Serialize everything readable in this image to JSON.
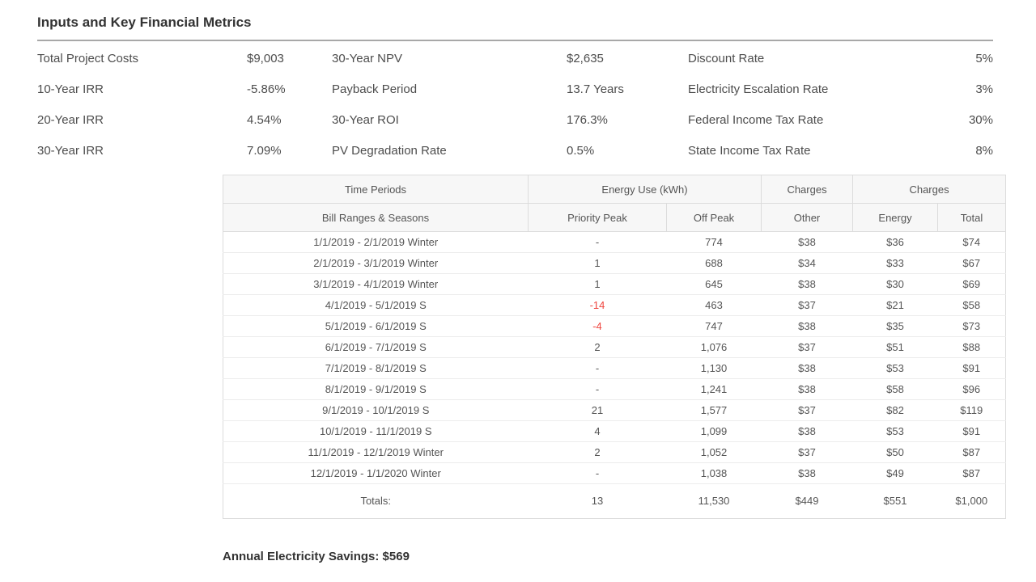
{
  "page": {
    "title": "Inputs and Key Financial Metrics",
    "savings_note": "Annual Electricity Savings: $569"
  },
  "metrics": {
    "rows": [
      [
        {
          "label": "Total Project Costs",
          "value": "$9,003"
        },
        {
          "label": "30-Year NPV",
          "value": "$2,635"
        },
        {
          "label": "Discount Rate",
          "value": "5%"
        }
      ],
      [
        {
          "label": "10-Year IRR",
          "value": "-5.86%"
        },
        {
          "label": "Payback Period",
          "value": "13.7 Years"
        },
        {
          "label": "Electricity Escalation Rate",
          "value": "3%"
        }
      ],
      [
        {
          "label": "20-Year IRR",
          "value": "4.54%"
        },
        {
          "label": "30-Year ROI",
          "value": "176.3%"
        },
        {
          "label": "Federal Income Tax Rate",
          "value": "30%"
        }
      ],
      [
        {
          "label": "30-Year IRR",
          "value": "7.09%"
        },
        {
          "label": "PV Degradation Rate",
          "value": "0.5%"
        },
        {
          "label": "State Income Tax Rate",
          "value": "8%"
        }
      ]
    ]
  },
  "bill_table": {
    "header_groups": [
      {
        "label": "Time Periods",
        "colspan": 1
      },
      {
        "label": "Energy Use (kWh)",
        "colspan": 2
      },
      {
        "label": "Charges",
        "colspan": 1
      },
      {
        "label": "Charges",
        "colspan": 2
      }
    ],
    "columns": [
      "Bill Ranges & Seasons",
      "Priority Peak",
      "Off Peak",
      "Other",
      "Energy",
      "Total"
    ],
    "rows": [
      [
        "1/1/2019 - 2/1/2019 Winter",
        "-",
        "774",
        "$38",
        "$36",
        "$74"
      ],
      [
        "2/1/2019 - 3/1/2019 Winter",
        "1",
        "688",
        "$34",
        "$33",
        "$67"
      ],
      [
        "3/1/2019 - 4/1/2019 Winter",
        "1",
        "645",
        "$38",
        "$30",
        "$69"
      ],
      [
        "4/1/2019 - 5/1/2019 S",
        "-14",
        "463",
        "$37",
        "$21",
        "$58"
      ],
      [
        "5/1/2019 - 6/1/2019 S",
        "-4",
        "747",
        "$38",
        "$35",
        "$73"
      ],
      [
        "6/1/2019 - 7/1/2019 S",
        "2",
        "1,076",
        "$37",
        "$51",
        "$88"
      ],
      [
        "7/1/2019 - 8/1/2019 S",
        "-",
        "1,130",
        "$38",
        "$53",
        "$91"
      ],
      [
        "8/1/2019 - 9/1/2019 S",
        "-",
        "1,241",
        "$38",
        "$58",
        "$96"
      ],
      [
        "9/1/2019 - 10/1/2019 S",
        "21",
        "1,577",
        "$37",
        "$82",
        "$119"
      ],
      [
        "10/1/2019 - 11/1/2019 S",
        "4",
        "1,099",
        "$38",
        "$53",
        "$91"
      ],
      [
        "11/1/2019 - 12/1/2019 Winter",
        "2",
        "1,052",
        "$37",
        "$50",
        "$87"
      ],
      [
        "12/1/2019 - 1/1/2020 Winter",
        "-",
        "1,038",
        "$38",
        "$49",
        "$87"
      ]
    ],
    "totals": [
      "Totals:",
      "13",
      "11,530",
      "$449",
      "$551",
      "$1,000"
    ],
    "colors": {
      "negative_value": "#ef453e"
    }
  }
}
